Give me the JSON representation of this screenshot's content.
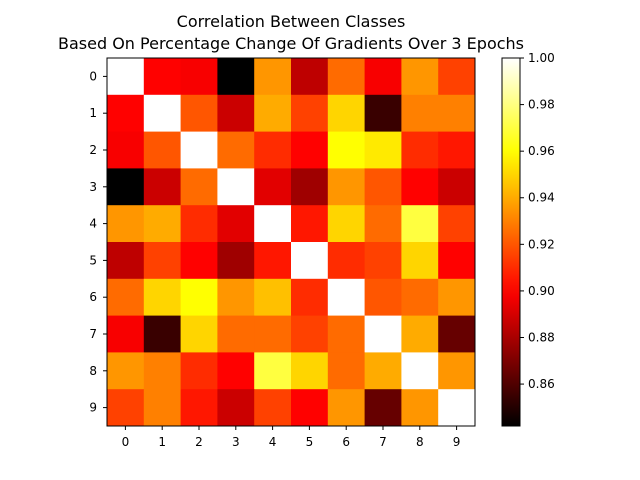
{
  "chart_data": {
    "type": "heatmap",
    "title_lines": [
      "Correlation Between Classes",
      "Based On Percentage Change Of Gradients Over 3 Epochs"
    ],
    "xlabel": "",
    "ylabel": "",
    "x_labels": [
      "0",
      "1",
      "2",
      "3",
      "4",
      "5",
      "6",
      "7",
      "8",
      "9"
    ],
    "y_labels": [
      "0",
      "1",
      "2",
      "3",
      "4",
      "5",
      "6",
      "7",
      "8",
      "9"
    ],
    "colormap": "hot",
    "colorbar": {
      "min": 0.842,
      "max": 1.0,
      "ticks": [
        0.86,
        0.88,
        0.9,
        0.92,
        0.94,
        0.96,
        0.98,
        1.0
      ],
      "tick_labels": [
        "0.86",
        "0.88",
        "0.90",
        "0.92",
        "0.94",
        "0.96",
        "0.98",
        "1.00"
      ]
    },
    "values": [
      [
        1.0,
        0.9,
        0.898,
        0.842,
        0.935,
        0.885,
        0.925,
        0.898,
        0.935,
        0.915
      ],
      [
        0.9,
        1.0,
        0.92,
        0.888,
        0.94,
        0.915,
        0.95,
        0.855,
        0.93,
        0.93
      ],
      [
        0.898,
        0.92,
        1.0,
        0.925,
        0.91,
        0.9,
        0.96,
        0.955,
        0.91,
        0.905
      ],
      [
        0.842,
        0.888,
        0.925,
        1.0,
        0.893,
        0.878,
        0.935,
        0.92,
        0.9,
        0.888
      ],
      [
        0.935,
        0.94,
        0.91,
        0.893,
        1.0,
        0.905,
        0.95,
        0.925,
        0.97,
        0.915
      ],
      [
        0.885,
        0.915,
        0.9,
        0.878,
        0.905,
        1.0,
        0.91,
        0.915,
        0.95,
        0.9
      ],
      [
        0.925,
        0.95,
        0.96,
        0.935,
        0.945,
        0.91,
        1.0,
        0.92,
        0.925,
        0.935
      ],
      [
        0.898,
        0.855,
        0.95,
        0.925,
        0.925,
        0.915,
        0.925,
        1.0,
        0.94,
        0.865
      ],
      [
        0.935,
        0.93,
        0.91,
        0.9,
        0.97,
        0.95,
        0.925,
        0.94,
        1.0,
        0.935
      ],
      [
        0.915,
        0.93,
        0.905,
        0.888,
        0.915,
        0.9,
        0.935,
        0.865,
        0.935,
        1.0
      ]
    ]
  }
}
